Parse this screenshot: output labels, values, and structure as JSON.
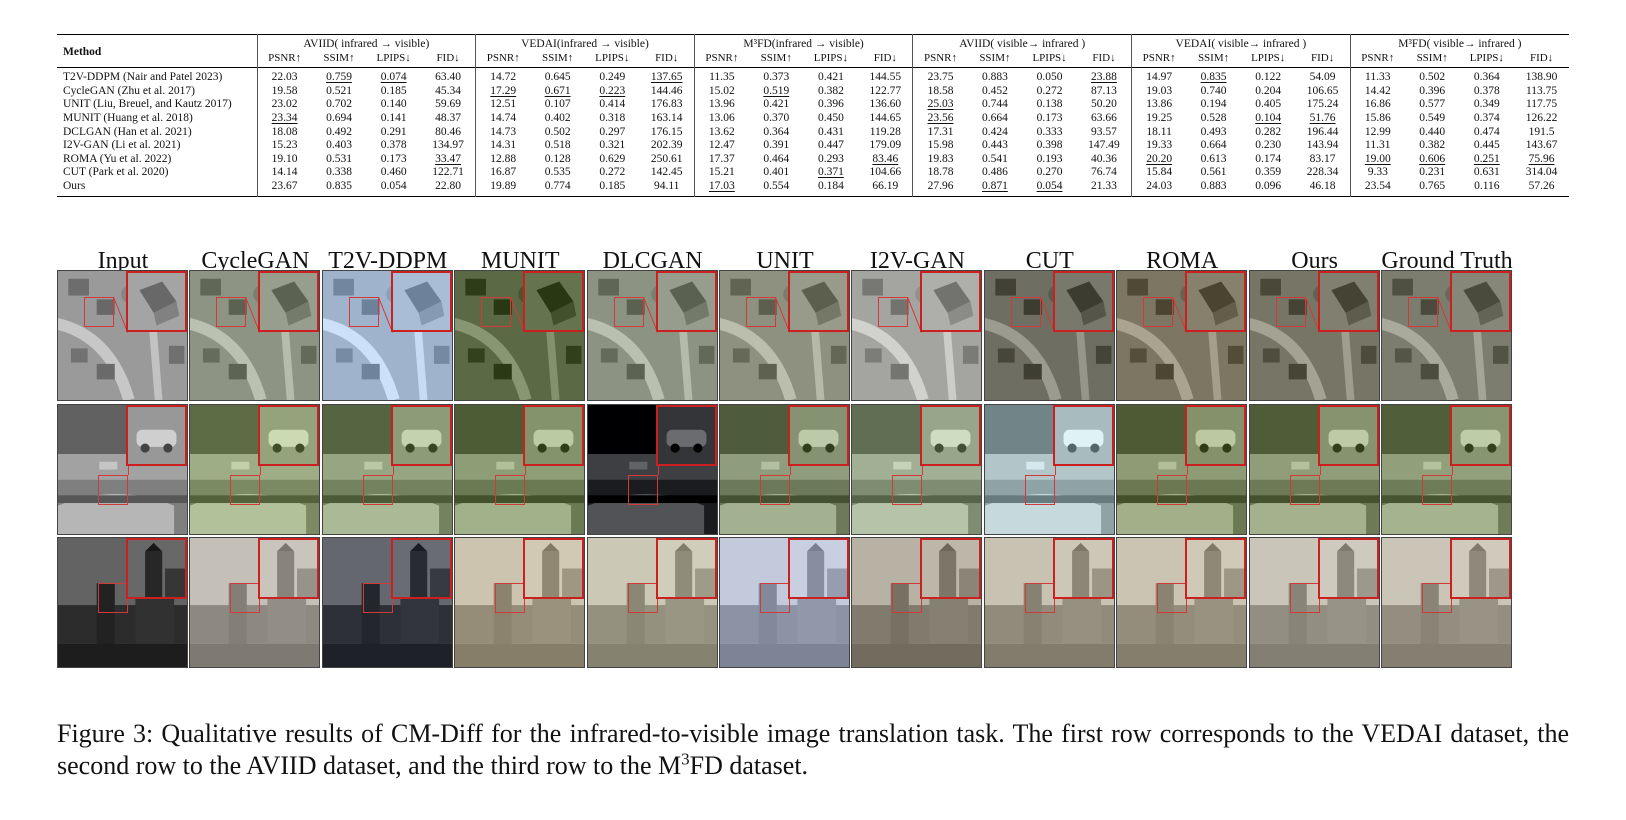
{
  "table": {
    "method_header": "Method",
    "groups": [
      {
        "label": "AVIID( infrared → visible)"
      },
      {
        "label": "VEDAI(infrared → visible)"
      },
      {
        "label": "M³FD(infrared → visible)"
      },
      {
        "label": "AVIID( visible→ infrared )"
      },
      {
        "label": "VEDAI( visible→ infrared )"
      },
      {
        "label": "M³FD( visible→ infrared )"
      }
    ],
    "metrics": [
      "PSNR↑",
      "SSIM↑",
      "LPIPS↓",
      "FID↓"
    ],
    "rows": [
      {
        "method": "T2V-DDPM (Nair and Patel 2023)",
        "cells": [
          {
            "v": "22.03"
          },
          {
            "v": "0.759",
            "s": "u"
          },
          {
            "v": "0.074",
            "s": "u"
          },
          {
            "v": "63.40"
          },
          {
            "v": "14.72"
          },
          {
            "v": "0.645"
          },
          {
            "v": "0.249"
          },
          {
            "v": "137.65",
            "s": "u"
          },
          {
            "v": "11.35"
          },
          {
            "v": "0.373"
          },
          {
            "v": "0.421"
          },
          {
            "v": "144.55"
          },
          {
            "v": "23.75"
          },
          {
            "v": "0.883",
            "s": "b"
          },
          {
            "v": "0.050",
            "s": "b"
          },
          {
            "v": "23.88",
            "s": "u"
          },
          {
            "v": "14.97"
          },
          {
            "v": "0.835",
            "s": "u"
          },
          {
            "v": "0.122"
          },
          {
            "v": "54.09"
          },
          {
            "v": "11.33"
          },
          {
            "v": "0.502"
          },
          {
            "v": "0.364"
          },
          {
            "v": "138.90"
          }
        ]
      },
      {
        "method": "CycleGAN (Zhu et al. 2017)",
        "cells": [
          {
            "v": "19.58"
          },
          {
            "v": "0.521"
          },
          {
            "v": "0.185"
          },
          {
            "v": "45.34"
          },
          {
            "v": "17.29",
            "s": "u"
          },
          {
            "v": "0.671",
            "s": "u"
          },
          {
            "v": "0.223",
            "s": "u"
          },
          {
            "v": "144.46"
          },
          {
            "v": "15.02"
          },
          {
            "v": "0.519",
            "s": "u"
          },
          {
            "v": "0.382"
          },
          {
            "v": "122.77"
          },
          {
            "v": "18.58"
          },
          {
            "v": "0.452"
          },
          {
            "v": "0.272"
          },
          {
            "v": "87.13"
          },
          {
            "v": "19.03"
          },
          {
            "v": "0.740"
          },
          {
            "v": "0.204"
          },
          {
            "v": "106.65"
          },
          {
            "v": "14.42"
          },
          {
            "v": "0.396"
          },
          {
            "v": "0.378"
          },
          {
            "v": "113.75"
          }
        ]
      },
      {
        "method": "UNIT (Liu, Breuel, and Kautz 2017)",
        "cells": [
          {
            "v": "23.02"
          },
          {
            "v": "0.702"
          },
          {
            "v": "0.140"
          },
          {
            "v": "59.69"
          },
          {
            "v": "12.51"
          },
          {
            "v": "0.107"
          },
          {
            "v": "0.414"
          },
          {
            "v": "176.83"
          },
          {
            "v": "13.96"
          },
          {
            "v": "0.421"
          },
          {
            "v": "0.396"
          },
          {
            "v": "136.60"
          },
          {
            "v": "25.03",
            "s": "u"
          },
          {
            "v": "0.744"
          },
          {
            "v": "0.138"
          },
          {
            "v": "50.20"
          },
          {
            "v": "13.86"
          },
          {
            "v": "0.194"
          },
          {
            "v": "0.405"
          },
          {
            "v": "175.24"
          },
          {
            "v": "16.86"
          },
          {
            "v": "0.577"
          },
          {
            "v": "0.349"
          },
          {
            "v": "117.75"
          }
        ]
      },
      {
        "method": "MUNIT (Huang et al. 2018)",
        "cells": [
          {
            "v": "23.34",
            "s": "u"
          },
          {
            "v": "0.694"
          },
          {
            "v": "0.141"
          },
          {
            "v": "48.37"
          },
          {
            "v": "14.74"
          },
          {
            "v": "0.402"
          },
          {
            "v": "0.318"
          },
          {
            "v": "163.14"
          },
          {
            "v": "13.06"
          },
          {
            "v": "0.370"
          },
          {
            "v": "0.450"
          },
          {
            "v": "144.65"
          },
          {
            "v": "23.56",
            "s": "u"
          },
          {
            "v": "0.664"
          },
          {
            "v": "0.173"
          },
          {
            "v": "63.66"
          },
          {
            "v": "19.25"
          },
          {
            "v": "0.528"
          },
          {
            "v": "0.104",
            "s": "u"
          },
          {
            "v": "51.76",
            "s": "u"
          },
          {
            "v": "15.86"
          },
          {
            "v": "0.549"
          },
          {
            "v": "0.374"
          },
          {
            "v": "126.22"
          }
        ]
      },
      {
        "method": "DCLGAN (Han et al. 2021)",
        "cells": [
          {
            "v": "18.08"
          },
          {
            "v": "0.492"
          },
          {
            "v": "0.291"
          },
          {
            "v": "80.46"
          },
          {
            "v": "14.73"
          },
          {
            "v": "0.502"
          },
          {
            "v": "0.297"
          },
          {
            "v": "176.15"
          },
          {
            "v": "13.62"
          },
          {
            "v": "0.364"
          },
          {
            "v": "0.431"
          },
          {
            "v": "119.28"
          },
          {
            "v": "17.31"
          },
          {
            "v": "0.424"
          },
          {
            "v": "0.333"
          },
          {
            "v": "93.57"
          },
          {
            "v": "18.11"
          },
          {
            "v": "0.493"
          },
          {
            "v": "0.282"
          },
          {
            "v": "196.44"
          },
          {
            "v": "12.99"
          },
          {
            "v": "0.440"
          },
          {
            "v": "0.474"
          },
          {
            "v": "191.5"
          }
        ]
      },
      {
        "method": "I2V-GAN (Li et al. 2021)",
        "cells": [
          {
            "v": "15.23"
          },
          {
            "v": "0.403"
          },
          {
            "v": "0.378"
          },
          {
            "v": "134.97"
          },
          {
            "v": "14.31"
          },
          {
            "v": "0.518"
          },
          {
            "v": "0.321"
          },
          {
            "v": "202.39"
          },
          {
            "v": "12.47"
          },
          {
            "v": "0.391"
          },
          {
            "v": "0.447"
          },
          {
            "v": "179.09"
          },
          {
            "v": "15.98"
          },
          {
            "v": "0.443"
          },
          {
            "v": "0.398"
          },
          {
            "v": "147.49"
          },
          {
            "v": "19.33"
          },
          {
            "v": "0.664"
          },
          {
            "v": "0.230"
          },
          {
            "v": "143.94"
          },
          {
            "v": "11.31"
          },
          {
            "v": "0.382"
          },
          {
            "v": "0.445"
          },
          {
            "v": "143.67"
          }
        ]
      },
      {
        "method": "ROMA (Yu et al. 2022)",
        "cells": [
          {
            "v": "19.10"
          },
          {
            "v": "0.531"
          },
          {
            "v": "0.173"
          },
          {
            "v": "33.47",
            "s": "u"
          },
          {
            "v": "12.88"
          },
          {
            "v": "0.128"
          },
          {
            "v": "0.629"
          },
          {
            "v": "250.61"
          },
          {
            "v": "17.37",
            "s": "b"
          },
          {
            "v": "0.464"
          },
          {
            "v": "0.293"
          },
          {
            "v": "83.46",
            "s": "u"
          },
          {
            "v": "19.83"
          },
          {
            "v": "0.541"
          },
          {
            "v": "0.193"
          },
          {
            "v": "40.36"
          },
          {
            "v": "20.20",
            "s": "u"
          },
          {
            "v": "0.613"
          },
          {
            "v": "0.174"
          },
          {
            "v": "83.17"
          },
          {
            "v": "19.00",
            "s": "u"
          },
          {
            "v": "0.606",
            "s": "u"
          },
          {
            "v": "0.251",
            "s": "u"
          },
          {
            "v": "75.96",
            "s": "u"
          }
        ]
      },
      {
        "method": "CUT (Park et al. 2020)",
        "cells": [
          {
            "v": "14.14"
          },
          {
            "v": "0.338"
          },
          {
            "v": "0.460"
          },
          {
            "v": "122.71"
          },
          {
            "v": "16.87"
          },
          {
            "v": "0.535"
          },
          {
            "v": "0.272"
          },
          {
            "v": "142.45"
          },
          {
            "v": "15.21"
          },
          {
            "v": "0.401"
          },
          {
            "v": "0.371",
            "s": "u"
          },
          {
            "v": "104.66"
          },
          {
            "v": "18.78"
          },
          {
            "v": "0.486"
          },
          {
            "v": "0.270"
          },
          {
            "v": "76.74"
          },
          {
            "v": "15.84"
          },
          {
            "v": "0.561"
          },
          {
            "v": "0.359"
          },
          {
            "v": "228.34"
          },
          {
            "v": "9.33"
          },
          {
            "v": "0.231"
          },
          {
            "v": "0.631"
          },
          {
            "v": "314.04"
          }
        ]
      },
      {
        "method": "Ours",
        "cells": [
          {
            "v": "23.67",
            "s": "b"
          },
          {
            "v": "0.835",
            "s": "b"
          },
          {
            "v": "0.054",
            "s": "b"
          },
          {
            "v": "22.80",
            "s": "b"
          },
          {
            "v": "19.89",
            "s": "b"
          },
          {
            "v": "0.774",
            "s": "b"
          },
          {
            "v": "0.185",
            "s": "b"
          },
          {
            "v": "94.11",
            "s": "b"
          },
          {
            "v": "17.03",
            "s": "u"
          },
          {
            "v": "0.554",
            "s": "b"
          },
          {
            "v": "0.184",
            "s": "b"
          },
          {
            "v": "66.19",
            "s": "b"
          },
          {
            "v": "27.96",
            "s": "b"
          },
          {
            "v": "0.871",
            "s": "u"
          },
          {
            "v": "0.054",
            "s": "u"
          },
          {
            "v": "21.33",
            "s": "b"
          },
          {
            "v": "24.03",
            "s": "b"
          },
          {
            "v": "0.883",
            "s": "b"
          },
          {
            "v": "0.096",
            "s": "b"
          },
          {
            "v": "46.18",
            "s": "b"
          },
          {
            "v": "23.54",
            "s": "b"
          },
          {
            "v": "0.765",
            "s": "b"
          },
          {
            "v": "0.116",
            "s": "b"
          },
          {
            "v": "57.26",
            "s": "b"
          }
        ]
      }
    ]
  },
  "figure": {
    "columns": [
      "Input",
      "CycleGAN",
      "T2V-DDPM",
      "MUNIT",
      "DLCGAN",
      "UNIT",
      "I2V-GAN",
      "CUT",
      "ROMA",
      "Ours",
      "Ground Truth"
    ],
    "rows": [
      {
        "scene": "aerial-houses-road",
        "tints": [
          "#9a9a9a",
          "#8e9484",
          "#9fb4cc",
          "#5b6a45",
          "#8c9382",
          "#8f9180",
          "#a4a4a0",
          "#6f6e62",
          "#7c7663",
          "#767566",
          "#7c7d6e"
        ]
      },
      {
        "scene": "car-bridge-trees",
        "tints": [
          "#7f7f7f",
          "#7c8a63",
          "#73835f",
          "#6a7a52",
          "#1a1c20",
          "#6d7a5a",
          "#7e8c72",
          "#8fa3a7",
          "#6b7851",
          "#6d7a55",
          "#6f7c58"
        ]
      },
      {
        "scene": "building-square",
        "tints": [
          "#3b3b3b",
          "#9c9890",
          "#3d3f47",
          "#a59c88",
          "#a4a08e",
          "#9aa2b4",
          "#8f8a7c",
          "#a09a8a",
          "#a49c8a",
          "#a29d91",
          "#a39d8f"
        ]
      }
    ]
  },
  "caption": {
    "prefix": "Figure 3: Qualitative results of CM-Diff for the infrared-to-visible image translation task. The first row corresponds to the VEDAI dataset, the second row to the AVIID dataset, and the third row to the M",
    "sup": "3",
    "suffix": "FD dataset."
  }
}
